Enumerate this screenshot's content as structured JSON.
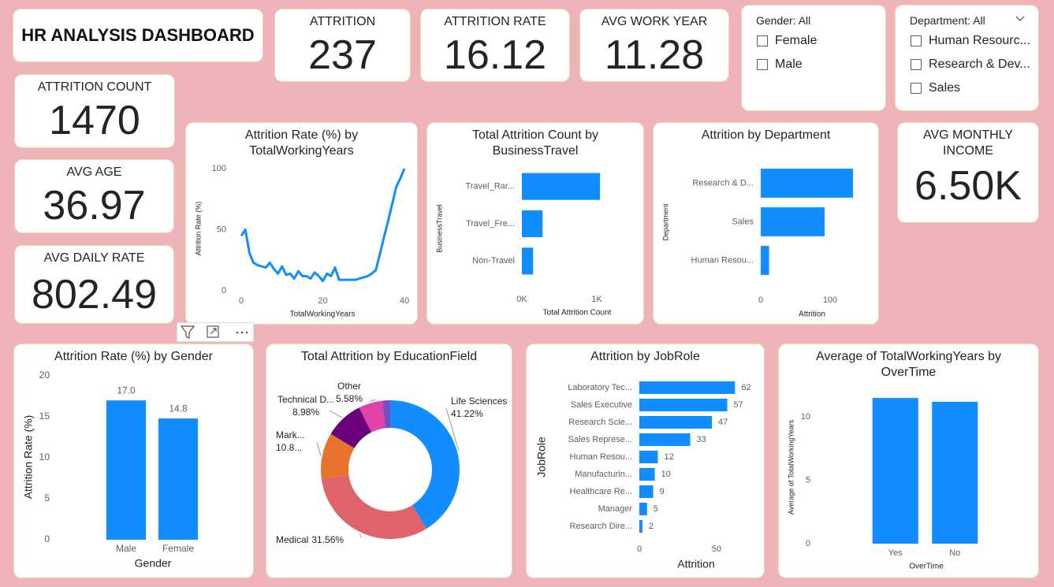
{
  "header": {
    "title": "HR ANALYSIS DASHBOARD"
  },
  "kpis": [
    {
      "label": "ATTRITION",
      "value": 237
    },
    {
      "label": "ATTRITION RATE",
      "value": 16.12
    },
    {
      "label": "AVG WORK YEAR",
      "value": 11.28
    },
    {
      "label": "ATTRITION COUNT",
      "value": 1470
    },
    {
      "label": "AVG AGE",
      "value": 36.97
    },
    {
      "label": "AVG DAILY RATE",
      "value": 802.49
    },
    {
      "label": "AVG MONTHLY INCOME",
      "value": "6.50K"
    }
  ],
  "slicers": [
    {
      "title": "Gender: All",
      "options": [
        "Female",
        "Male"
      ]
    },
    {
      "title": "Department: All",
      "options": [
        "Human Resourc...",
        "Research & Dev...",
        "Sales"
      ]
    }
  ],
  "chart_data": [
    {
      "type": "line",
      "title": "Attrition Rate (%) by TotalWorkingYears",
      "x_label": "TotalWorkingYears",
      "y_label": "Attrition Rate (%)",
      "x": [
        0,
        1,
        2,
        3,
        4,
        5,
        6,
        7,
        8,
        9,
        10,
        11,
        12,
        13,
        14,
        15,
        16,
        17,
        18,
        19,
        20,
        21,
        22,
        23,
        24,
        25,
        26,
        27,
        28,
        29,
        30,
        31,
        32,
        33,
        34,
        35,
        36,
        37,
        38,
        39,
        40
      ],
      "values": [
        45,
        50,
        31,
        23,
        21,
        20,
        19,
        23,
        18,
        14,
        20,
        13,
        14,
        10,
        16,
        12,
        12,
        10,
        15,
        12,
        8,
        14,
        12,
        19,
        9,
        9,
        9,
        9,
        9,
        10,
        11,
        12,
        14,
        17,
        30,
        44,
        57,
        71,
        85,
        92,
        100
      ],
      "color": "#118DFF",
      "xlim": [
        0,
        40
      ],
      "ylim": [
        0,
        100
      ],
      "xticks": [
        0,
        20,
        40
      ],
      "yticks": [
        0,
        50,
        100
      ],
      "grid": false
    },
    {
      "type": "bar",
      "horizontal": true,
      "title": "Total Attrition Count by BusinessTravel",
      "x_label": "Total Attrition Count",
      "y_label": "BusinessTravel",
      "categories": [
        "Travel_Rar...",
        "Travel_Fre...",
        "Non-Travel"
      ],
      "values": [
        1043,
        277,
        150
      ],
      "color": "#118DFF",
      "xlim": [
        0,
        1200
      ],
      "xticks": [
        {
          "value": 0,
          "label": "0K"
        },
        {
          "value": 1000,
          "label": "1K"
        }
      ],
      "grid": false
    },
    {
      "type": "bar",
      "horizontal": true,
      "title": "Attrition by Department",
      "x_label": "Attrition",
      "y_label": "Department",
      "categories": [
        "Research & D...",
        "Sales",
        "Human Resou..."
      ],
      "values": [
        133,
        92,
        12
      ],
      "color": "#118DFF",
      "xlim": [
        0,
        150
      ],
      "xticks": [
        0,
        100
      ],
      "grid": false
    },
    {
      "type": "bar",
      "horizontal": false,
      "title": "Attrition Rate (%) by Gender",
      "x_label": "Gender",
      "y_label": "Attrition Rate (%)",
      "categories": [
        "Male",
        "Female"
      ],
      "values": [
        17.0,
        14.8
      ],
      "value_labels": [
        "17.0",
        "14.8"
      ],
      "data_labels": true,
      "color": "#118DFF",
      "ylim": [
        0,
        20
      ],
      "yticks": [
        0,
        5,
        10,
        15,
        20
      ],
      "grid": false
    },
    {
      "type": "donut",
      "title": "Total Attrition by EducationField",
      "categories": [
        "Life Sciences",
        "Medical",
        "Mark...",
        "Technical D...",
        "Other",
        null
      ],
      "values": [
        41.22,
        31.56,
        10.82,
        8.98,
        5.58,
        1.84
      ],
      "value_labels": [
        "41.22%",
        "31.56%",
        "10.8...",
        "8.98%",
        "5.58%",
        null
      ],
      "colors": [
        "#118DFF",
        "#E0636B",
        "#E8732F",
        "#6B007B",
        "#E044A7",
        "#744EC2"
      ]
    },
    {
      "type": "bar",
      "horizontal": true,
      "title": "Attrition by JobRole",
      "x_label": "Attrition",
      "y_label": "JobRole",
      "categories": [
        "Laboratory Tec...",
        "Sales Executive",
        "Research Scie...",
        "Sales Represe...",
        "Human Resou...",
        "Manufacturin...",
        "Healthcare Re...",
        "Manager",
        "Research Dire..."
      ],
      "values": [
        62,
        57,
        47,
        33,
        12,
        10,
        9,
        5,
        2
      ],
      "data_labels": true,
      "color": "#118DFF",
      "xlim": [
        0,
        70
      ],
      "xticks": [
        0,
        50
      ],
      "grid": false
    },
    {
      "type": "bar",
      "horizontal": false,
      "title": "Average of TotalWorkingYears by OverTime",
      "x_label": "OverTime",
      "y_label": "Average of TotalWorkingYears",
      "categories": [
        "Yes",
        "No"
      ],
      "values": [
        11.5,
        11.2
      ],
      "color": "#118DFF",
      "ylim": [
        0,
        12.5
      ],
      "yticks": [
        0,
        5,
        10
      ],
      "grid": false
    }
  ]
}
